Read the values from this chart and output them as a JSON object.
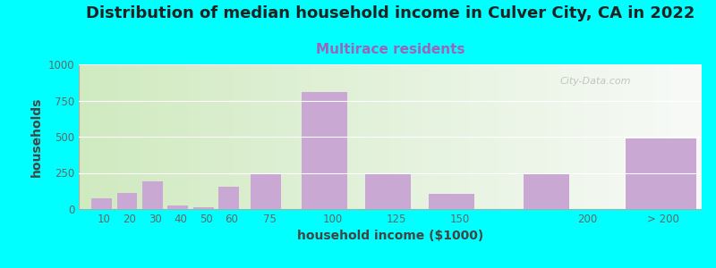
{
  "title": "Distribution of median household income in Culver City, CA in 2022",
  "subtitle": "Multirace residents",
  "xlabel": "household income ($1000)",
  "ylabel": "households",
  "background_color": "#00FFFF",
  "bar_color": "#C9A8D4",
  "plot_bg_left": "#D0EAC0",
  "plot_bg_right": "#F8FAF8",
  "categories": [
    "10",
    "20",
    "30",
    "40",
    "50",
    "60",
    "75",
    "100",
    "125",
    "150",
    "200",
    "> 200"
  ],
  "values": [
    75,
    110,
    190,
    25,
    15,
    155,
    250,
    810,
    250,
    105,
    250,
    490
  ],
  "ylim": [
    0,
    1000
  ],
  "yticks": [
    0,
    250,
    500,
    750,
    1000
  ],
  "title_fontsize": 13,
  "subtitle_fontsize": 11,
  "axis_label_fontsize": 10,
  "tick_fontsize": 8.5,
  "watermark": "City-Data.com"
}
